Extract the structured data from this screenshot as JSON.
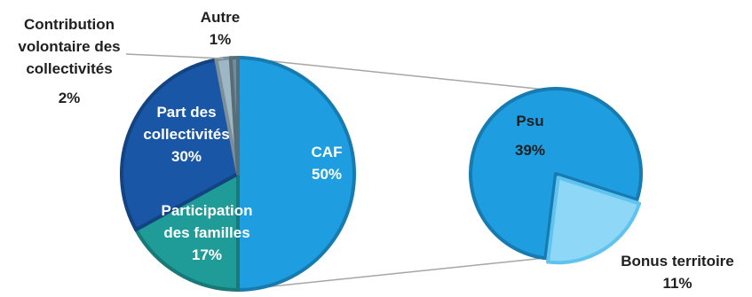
{
  "chart_data": {
    "type": "pie",
    "subtype": "pie-of-pie",
    "slices": [
      {
        "id": "caf",
        "label": "CAF",
        "pct_label": "50%",
        "value": 50,
        "color": "#1e9ee0"
      },
      {
        "id": "familles",
        "label": "Participation des familles",
        "pct_label": "17%",
        "value": 17,
        "color": "#1f9b98"
      },
      {
        "id": "collectivites",
        "label": "Part des collectivités",
        "pct_label": "30%",
        "value": 30,
        "color": "#1a56a6"
      },
      {
        "id": "volontaire",
        "label": "Contribution volontaire des collectivités",
        "pct_label": "2%",
        "value": 2,
        "color": "#9db7c4"
      },
      {
        "id": "autre",
        "label": "Autre",
        "pct_label": "1%",
        "value": 1,
        "color": "#6f8d9b"
      }
    ],
    "secondary": {
      "source_slice": "caf",
      "slices": [
        {
          "id": "psu",
          "label": "Psu",
          "pct_label": "39%",
          "value": 39,
          "color": "#1e9ee0"
        },
        {
          "id": "bonus",
          "label": "Bonus territoire",
          "pct_label": "11%",
          "value": 11,
          "color": "#8fd7f7"
        }
      ]
    }
  },
  "labels": {
    "caf": {
      "name": "CAF",
      "pct": "50%"
    },
    "familles": {
      "line1": "Participation",
      "line2": "des familles",
      "pct": "17%"
    },
    "collectivites": {
      "line1": "Part des",
      "line2": "collectivités",
      "pct": "30%"
    },
    "volontaire": {
      "line1": "Contribution",
      "line2": "volontaire des",
      "line3": "collectivités",
      "pct": "2%"
    },
    "autre": {
      "name": "Autre",
      "pct": "1%"
    },
    "psu": {
      "name": "Psu",
      "pct": "39%"
    },
    "bonus": {
      "name": "Bonus territoire",
      "pct": "11%"
    }
  }
}
